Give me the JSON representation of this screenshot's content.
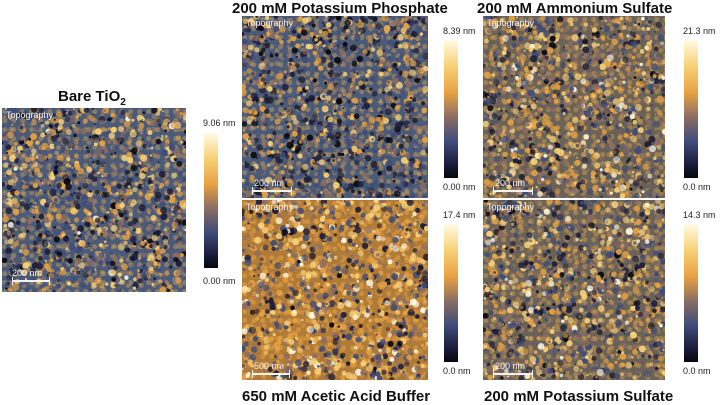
{
  "panels": {
    "bare": {
      "title_main": "Bare TiO",
      "title_sub": "2",
      "tag": "Topography",
      "scale": "200 nm",
      "cb_max": "9.06 nm",
      "cb_min": "0.00 nm"
    },
    "potassium_phosphate": {
      "title": "200 mM Potassium Phosphate",
      "tag": "Topography",
      "scale": "200 nm",
      "cb_max": "8.39 nm",
      "cb_min": "0.00 nm"
    },
    "ammonium_sulfate": {
      "title": "200 mM Ammonium Sulfate",
      "tag": "Topography",
      "scale": "200 nm",
      "cb_max": "21.3 nm",
      "cb_min": "0.0 nm"
    },
    "acetic_acid": {
      "title": "650 mM Acetic Acid Buffer",
      "tag": "Topography",
      "scale": "500 nm",
      "cb_max": "17.4 nm",
      "cb_min": "0.0 nm"
    },
    "potassium_sulfate": {
      "title": "200 mM Potassium Sulfate",
      "tag": "Topography",
      "scale": "200 nm",
      "cb_max": "14.3 nm",
      "cb_min": "0.0 nm"
    }
  },
  "colormap": [
    "#07060f",
    "#1b1d3a",
    "#3d4b79",
    "#8a6d63",
    "#e7a242",
    "#f8d37a",
    "#fffbe6"
  ]
}
